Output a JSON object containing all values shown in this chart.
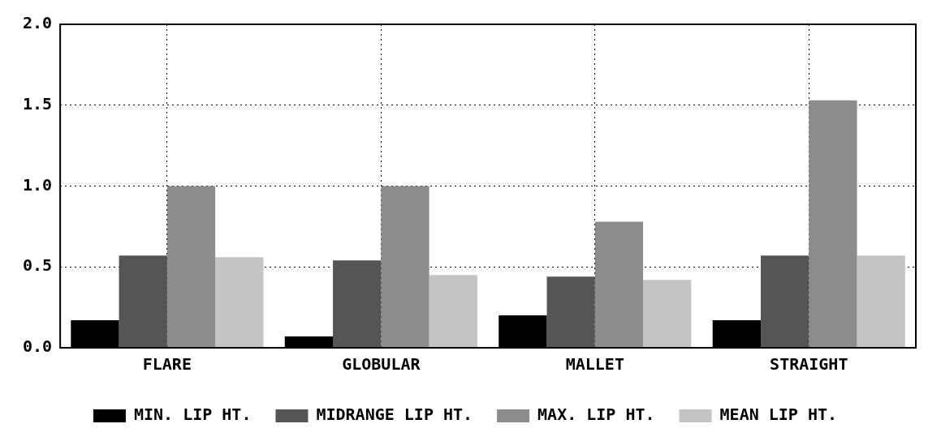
{
  "chart_data": {
    "type": "bar",
    "categories": [
      "FLARE",
      "GLOBULAR",
      "MALLET",
      "STRAIGHT"
    ],
    "series": [
      {
        "name": "MIN. LIP HT.",
        "color": "#000000",
        "values": [
          0.17,
          0.07,
          0.2,
          0.17
        ]
      },
      {
        "name": "MIDRANGE LIP HT.",
        "color": "#555555",
        "values": [
          0.57,
          0.54,
          0.44,
          0.57
        ]
      },
      {
        "name": "MAX. LIP HT.",
        "color": "#8c8c8c",
        "values": [
          1.0,
          1.0,
          0.78,
          1.53
        ]
      },
      {
        "name": "MEAN LIP HT.",
        "color": "#c4c4c4",
        "values": [
          0.56,
          0.45,
          0.42,
          0.57
        ]
      }
    ],
    "ylim": [
      0,
      2.0
    ],
    "yticks": [
      {
        "value": 0,
        "label": "0.0"
      },
      {
        "value": 0.5,
        "label": "0.5"
      },
      {
        "value": 1.0,
        "label": "1.0"
      },
      {
        "value": 1.5,
        "label": "1.5"
      },
      {
        "value": 2.0,
        "label": "2.0"
      }
    ],
    "grid": true,
    "legend": "bottom"
  }
}
